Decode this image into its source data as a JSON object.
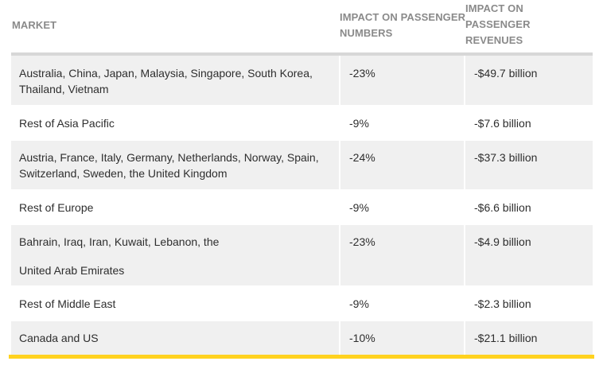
{
  "table": {
    "headers": {
      "market": "MARKET",
      "passengers": "IMPACT ON PASSENGER NUMBERS",
      "revenues": "IMPACT ON PASSENGER REVENUES"
    },
    "rows": [
      {
        "market_lines": [
          "Australia, China, Japan, Malaysia, Singapore, South Korea,",
          "Thailand, Vietnam"
        ],
        "passengers": "-23%",
        "revenues": "-$49.7 billion"
      },
      {
        "market_lines": [
          "Rest of Asia Pacific"
        ],
        "passengers": "-9%",
        "revenues": "-$7.6 billion"
      },
      {
        "market_lines": [
          "Austria, France, Italy, Germany, Netherlands, Norway, Spain,",
          "Switzerland, Sweden, the United Kingdom"
        ],
        "passengers": "-24%",
        "revenues": "-$37.3 billion"
      },
      {
        "market_lines": [
          "Rest of Europe"
        ],
        "passengers": "-9%",
        "revenues": "-$6.6 billion"
      },
      {
        "market_lines": [
          "Bahrain, Iraq, Iran, Kuwait, Lebanon, the",
          "United Arab Emirates"
        ],
        "passengers": "-23%",
        "revenues": "-$4.9 billion"
      },
      {
        "market_lines": [
          "Rest of Middle East"
        ],
        "passengers": "-9%",
        "revenues": "-$2.3 billion"
      },
      {
        "market_lines": [
          "Canada and US"
        ],
        "passengers": "-10%",
        "revenues": "-$21.1 billion"
      }
    ]
  },
  "colors": {
    "header_text": "#8a8a8a",
    "body_text": "#2e2e2e",
    "row_shade": "#f0f0f0",
    "header_rule": "#d7d7d7",
    "accent_rule": "#ffd21f"
  }
}
